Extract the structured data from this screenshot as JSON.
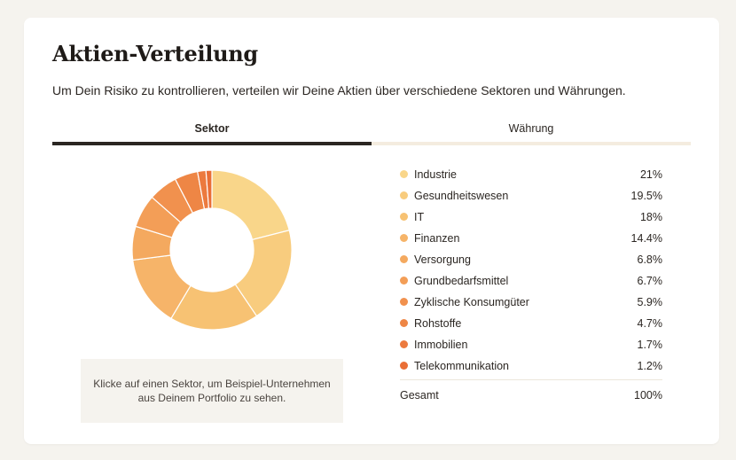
{
  "card": {
    "title": "Aktien-Verteilung",
    "subtitle": "Um Dein Risiko zu kontrollieren, verteilen wir Deine Aktien über verschiedene Sektoren und Währungen."
  },
  "tabs": [
    {
      "label": "Sektor",
      "active": true
    },
    {
      "label": "Währung",
      "active": false
    }
  ],
  "hint": "Klicke auf einen Sektor, um Beispiel-Unternehmen aus Deinem Portfolio zu sehen.",
  "chart_data": {
    "type": "pie",
    "donut": true,
    "categories": [
      "Industrie",
      "Gesundheitswesen",
      "IT",
      "Finanzen",
      "Versorgung",
      "Grundbedarfsmittel",
      "Zyklische Konsumgüter",
      "Rohstoffe",
      "Immobilien",
      "Telekommunikation"
    ],
    "values": [
      21,
      19.5,
      18,
      14.4,
      6.8,
      6.7,
      5.9,
      4.7,
      1.7,
      1.2
    ],
    "value_labels": [
      "21%",
      "19.5%",
      "18%",
      "14.4%",
      "6.8%",
      "6.7%",
      "5.9%",
      "4.7%",
      "1.7%",
      "1.2%"
    ],
    "colors": [
      "#f9d68a",
      "#f8cc7e",
      "#f7c273",
      "#f6b469",
      "#f4a95f",
      "#f39e57",
      "#f1914e",
      "#ee8645",
      "#ec7a3e",
      "#e96e36"
    ]
  },
  "total": {
    "label": "Gesamt",
    "value": "100%"
  }
}
